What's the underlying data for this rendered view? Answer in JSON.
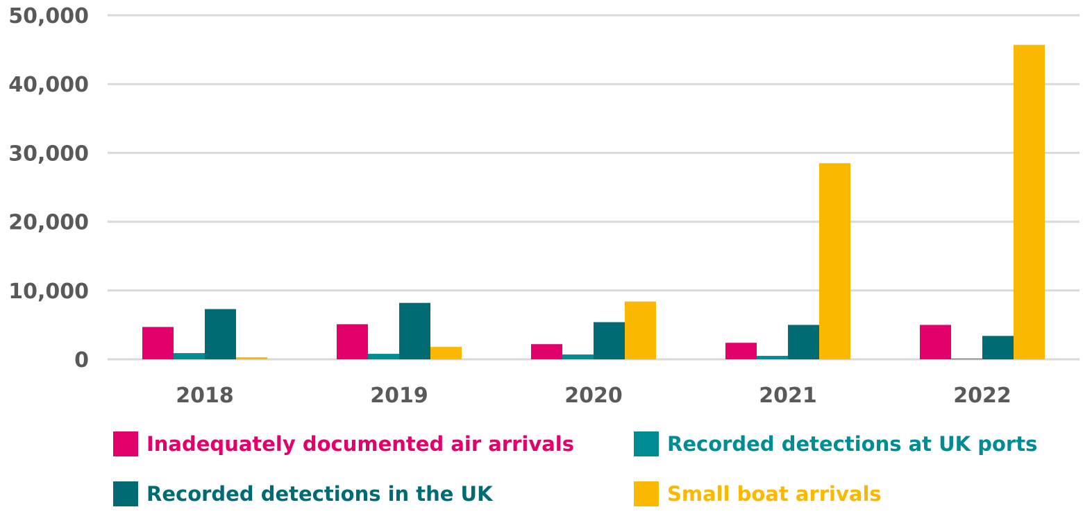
{
  "chart_data": {
    "type": "bar",
    "title": "",
    "xlabel": "",
    "ylabel": "",
    "ylim": [
      0,
      50000
    ],
    "yticks": [
      0,
      10000,
      20000,
      30000,
      40000,
      50000
    ],
    "ytick_labels": [
      "0",
      "10,000",
      "20,000",
      "30,000",
      "40,000",
      "50,000"
    ],
    "grid": true,
    "legend_position": "bottom",
    "categories": [
      "2018",
      "2019",
      "2020",
      "2021",
      "2022"
    ],
    "series": [
      {
        "name": "Inadequately documented air arrivals",
        "color": "#E2006A",
        "values": [
          4700,
          5100,
          2200,
          2400,
          5000
        ]
      },
      {
        "name": "Recorded detections at UK ports",
        "color": "#008C95",
        "values": [
          900,
          800,
          700,
          500,
          100
        ]
      },
      {
        "name": "Recorded detections in the UK",
        "color": "#006B73",
        "values": [
          7300,
          8200,
          5400,
          5000,
          3400
        ]
      },
      {
        "name": "Small boat arrivals",
        "color": "#FBB800",
        "values": [
          300,
          1800,
          8400,
          28500,
          45700
        ]
      }
    ]
  }
}
